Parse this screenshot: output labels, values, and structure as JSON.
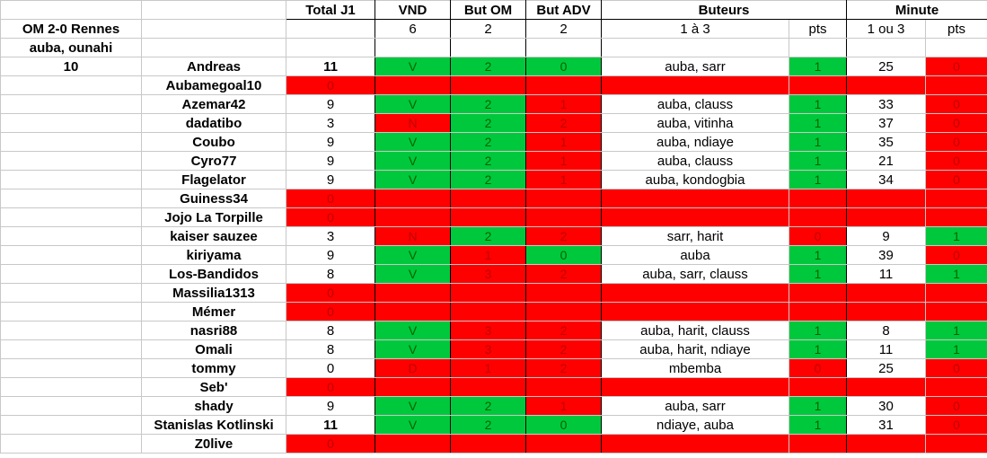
{
  "headers": {
    "total": "Total J1",
    "vnd": "VND",
    "but_om": "But OM",
    "but_adv": "But ADV",
    "buteurs": "Buteurs",
    "minute": "Minute"
  },
  "subheaders": {
    "match": "OM 2-0 Rennes",
    "vnd": "6",
    "but_om": "2",
    "but_adv": "2",
    "buteurs": "1 à 3",
    "buteurs_pts": "pts",
    "minute": "1 ou 3",
    "minute_pts": "pts"
  },
  "reference": {
    "scorers": "auba, ounahi",
    "minute": "10"
  },
  "colors": {
    "correct": "#00c83c",
    "wrong": "#ff0000"
  },
  "players": [
    {
      "name": "Andreas",
      "total": "11",
      "bold_total": true,
      "vnd": "V",
      "vnd_ok": true,
      "om": "2",
      "om_ok": true,
      "adv": "0",
      "adv_ok": true,
      "scorers": "auba, sarr",
      "scorers_pts": "1",
      "scorers_ok": true,
      "minute": "25",
      "minute_pts": "0",
      "minute_ok": false
    },
    {
      "name": "Aubamegoal10",
      "total": "0",
      "absent": true
    },
    {
      "name": "Azemar42",
      "total": "9",
      "vnd": "V",
      "vnd_ok": true,
      "om": "2",
      "om_ok": true,
      "adv": "1",
      "adv_ok": false,
      "scorers": "auba, clauss",
      "scorers_pts": "1",
      "scorers_ok": true,
      "minute": "33",
      "minute_pts": "0",
      "minute_ok": false
    },
    {
      "name": "dadatibo",
      "total": "3",
      "vnd": "N",
      "vnd_ok": false,
      "om": "2",
      "om_ok": true,
      "adv": "2",
      "adv_ok": false,
      "scorers": "auba, vitinha",
      "scorers_pts": "1",
      "scorers_ok": true,
      "minute": "37",
      "minute_pts": "0",
      "minute_ok": false
    },
    {
      "name": "Coubo",
      "total": "9",
      "vnd": "V",
      "vnd_ok": true,
      "om": "2",
      "om_ok": true,
      "adv": "1",
      "adv_ok": false,
      "scorers": "auba, ndiaye",
      "scorers_pts": "1",
      "scorers_ok": true,
      "minute": "35",
      "minute_pts": "0",
      "minute_ok": false
    },
    {
      "name": "Cyro77",
      "total": "9",
      "vnd": "V",
      "vnd_ok": true,
      "om": "2",
      "om_ok": true,
      "adv": "1",
      "adv_ok": false,
      "scorers": "auba, clauss",
      "scorers_pts": "1",
      "scorers_ok": true,
      "minute": "21",
      "minute_pts": "0",
      "minute_ok": false
    },
    {
      "name": "Flagelator",
      "total": "9",
      "vnd": "V",
      "vnd_ok": true,
      "om": "2",
      "om_ok": true,
      "adv": "1",
      "adv_ok": false,
      "scorers": "auba, kondogbia",
      "scorers_pts": "1",
      "scorers_ok": true,
      "minute": "34",
      "minute_pts": "0",
      "minute_ok": false
    },
    {
      "name": "Guiness34",
      "total": "0",
      "absent": true
    },
    {
      "name": "Jojo La Torpille",
      "total": "0",
      "absent": true
    },
    {
      "name": "kaiser sauzee",
      "total": "3",
      "vnd": "N",
      "vnd_ok": false,
      "om": "2",
      "om_ok": true,
      "adv": "2",
      "adv_ok": false,
      "scorers": "sarr, harit",
      "scorers_pts": "0",
      "scorers_ok": false,
      "minute": "9",
      "minute_pts": "1",
      "minute_ok": true
    },
    {
      "name": "kiriyama",
      "total": "9",
      "vnd": "V",
      "vnd_ok": true,
      "om": "1",
      "om_ok": false,
      "adv": "0",
      "adv_ok": true,
      "scorers": "auba",
      "scorers_pts": "1",
      "scorers_ok": true,
      "minute": "39",
      "minute_pts": "0",
      "minute_ok": false
    },
    {
      "name": "Los-Bandidos",
      "total": "8",
      "vnd": "V",
      "vnd_ok": true,
      "om": "3",
      "om_ok": false,
      "adv": "2",
      "adv_ok": false,
      "scorers": "auba, sarr, clauss",
      "scorers_pts": "1",
      "scorers_ok": true,
      "minute": "11",
      "minute_pts": "1",
      "minute_ok": true
    },
    {
      "name": "Massilia1313",
      "total": "0",
      "absent": true
    },
    {
      "name": "Mémer",
      "total": "0",
      "absent": true
    },
    {
      "name": "nasri88",
      "total": "8",
      "vnd": "V",
      "vnd_ok": true,
      "om": "3",
      "om_ok": false,
      "adv": "2",
      "adv_ok": false,
      "scorers": "auba, harit, clauss",
      "scorers_pts": "1",
      "scorers_ok": true,
      "minute": "8",
      "minute_pts": "1",
      "minute_ok": true
    },
    {
      "name": "Omali",
      "total": "8",
      "vnd": "V",
      "vnd_ok": true,
      "om": "3",
      "om_ok": false,
      "adv": "2",
      "adv_ok": false,
      "scorers": "auba, harit, ndiaye",
      "scorers_pts": "1",
      "scorers_ok": true,
      "minute": "11",
      "minute_pts": "1",
      "minute_ok": true
    },
    {
      "name": "tommy",
      "total": "0",
      "vnd": "D",
      "vnd_ok": false,
      "om": "1",
      "om_ok": false,
      "adv": "2",
      "adv_ok": false,
      "scorers": "mbemba",
      "scorers_pts": "0",
      "scorers_ok": false,
      "minute": "25",
      "minute_pts": "0",
      "minute_ok": false
    },
    {
      "name": "Seb'",
      "total": "0",
      "absent": true
    },
    {
      "name": "shady",
      "total": "9",
      "vnd": "V",
      "vnd_ok": true,
      "om": "2",
      "om_ok": true,
      "adv": "1",
      "adv_ok": false,
      "scorers": "auba, sarr",
      "scorers_pts": "1",
      "scorers_ok": true,
      "minute": "30",
      "minute_pts": "0",
      "minute_ok": false
    },
    {
      "name": "Stanislas Kotlinski",
      "total": "11",
      "bold_total": true,
      "vnd": "V",
      "vnd_ok": true,
      "om": "2",
      "om_ok": true,
      "adv": "0",
      "adv_ok": true,
      "scorers": "ndiaye, auba",
      "scorers_pts": "1",
      "scorers_ok": true,
      "minute": "31",
      "minute_pts": "0",
      "minute_ok": false
    },
    {
      "name": "Z0live",
      "total": "0",
      "absent": true
    }
  ]
}
